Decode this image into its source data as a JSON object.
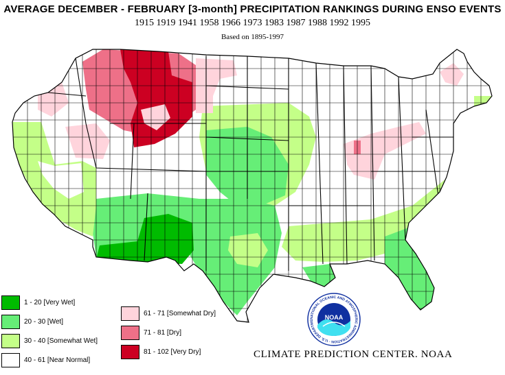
{
  "header": {
    "title": "AVERAGE DECEMBER - FEBRUARY [3-month] PRECIPITATION RANKINGS DURING ENSO EVENTS",
    "years": "1915 1919 1941 1958 1966 1973 1983 1987 1988 1992 1995",
    "basis": "Based on 1895-1997"
  },
  "legend": [
    {
      "label": "1 - 20 [Very Wet]",
      "color": "#00bb00"
    },
    {
      "label": "20 - 30 [Wet]",
      "color": "#66ee77"
    },
    {
      "label": "30 - 40 [Somewhat Wet]",
      "color": "#c4ff88"
    },
    {
      "label": "40 - 61 [Near Normal]",
      "color": "#ffffff"
    },
    {
      "label": "61 - 71 [Somewhat Dry]",
      "color": "#ffd4dc"
    },
    {
      "label": "71 - 81 [Dry]",
      "color": "#ee7088"
    },
    {
      "label": "81 - 102 [Very Dry]",
      "color": "#cc0022"
    }
  ],
  "logo": {
    "text": "NOAA",
    "ring_text": "NATIONAL OCEANIC AND ATMOSPHERIC ADMINISTRATION · U.S. DEPARTMENT OF COMMERCE"
  },
  "credit": "CLIMATE PREDICTION CENTER. NOAA"
}
